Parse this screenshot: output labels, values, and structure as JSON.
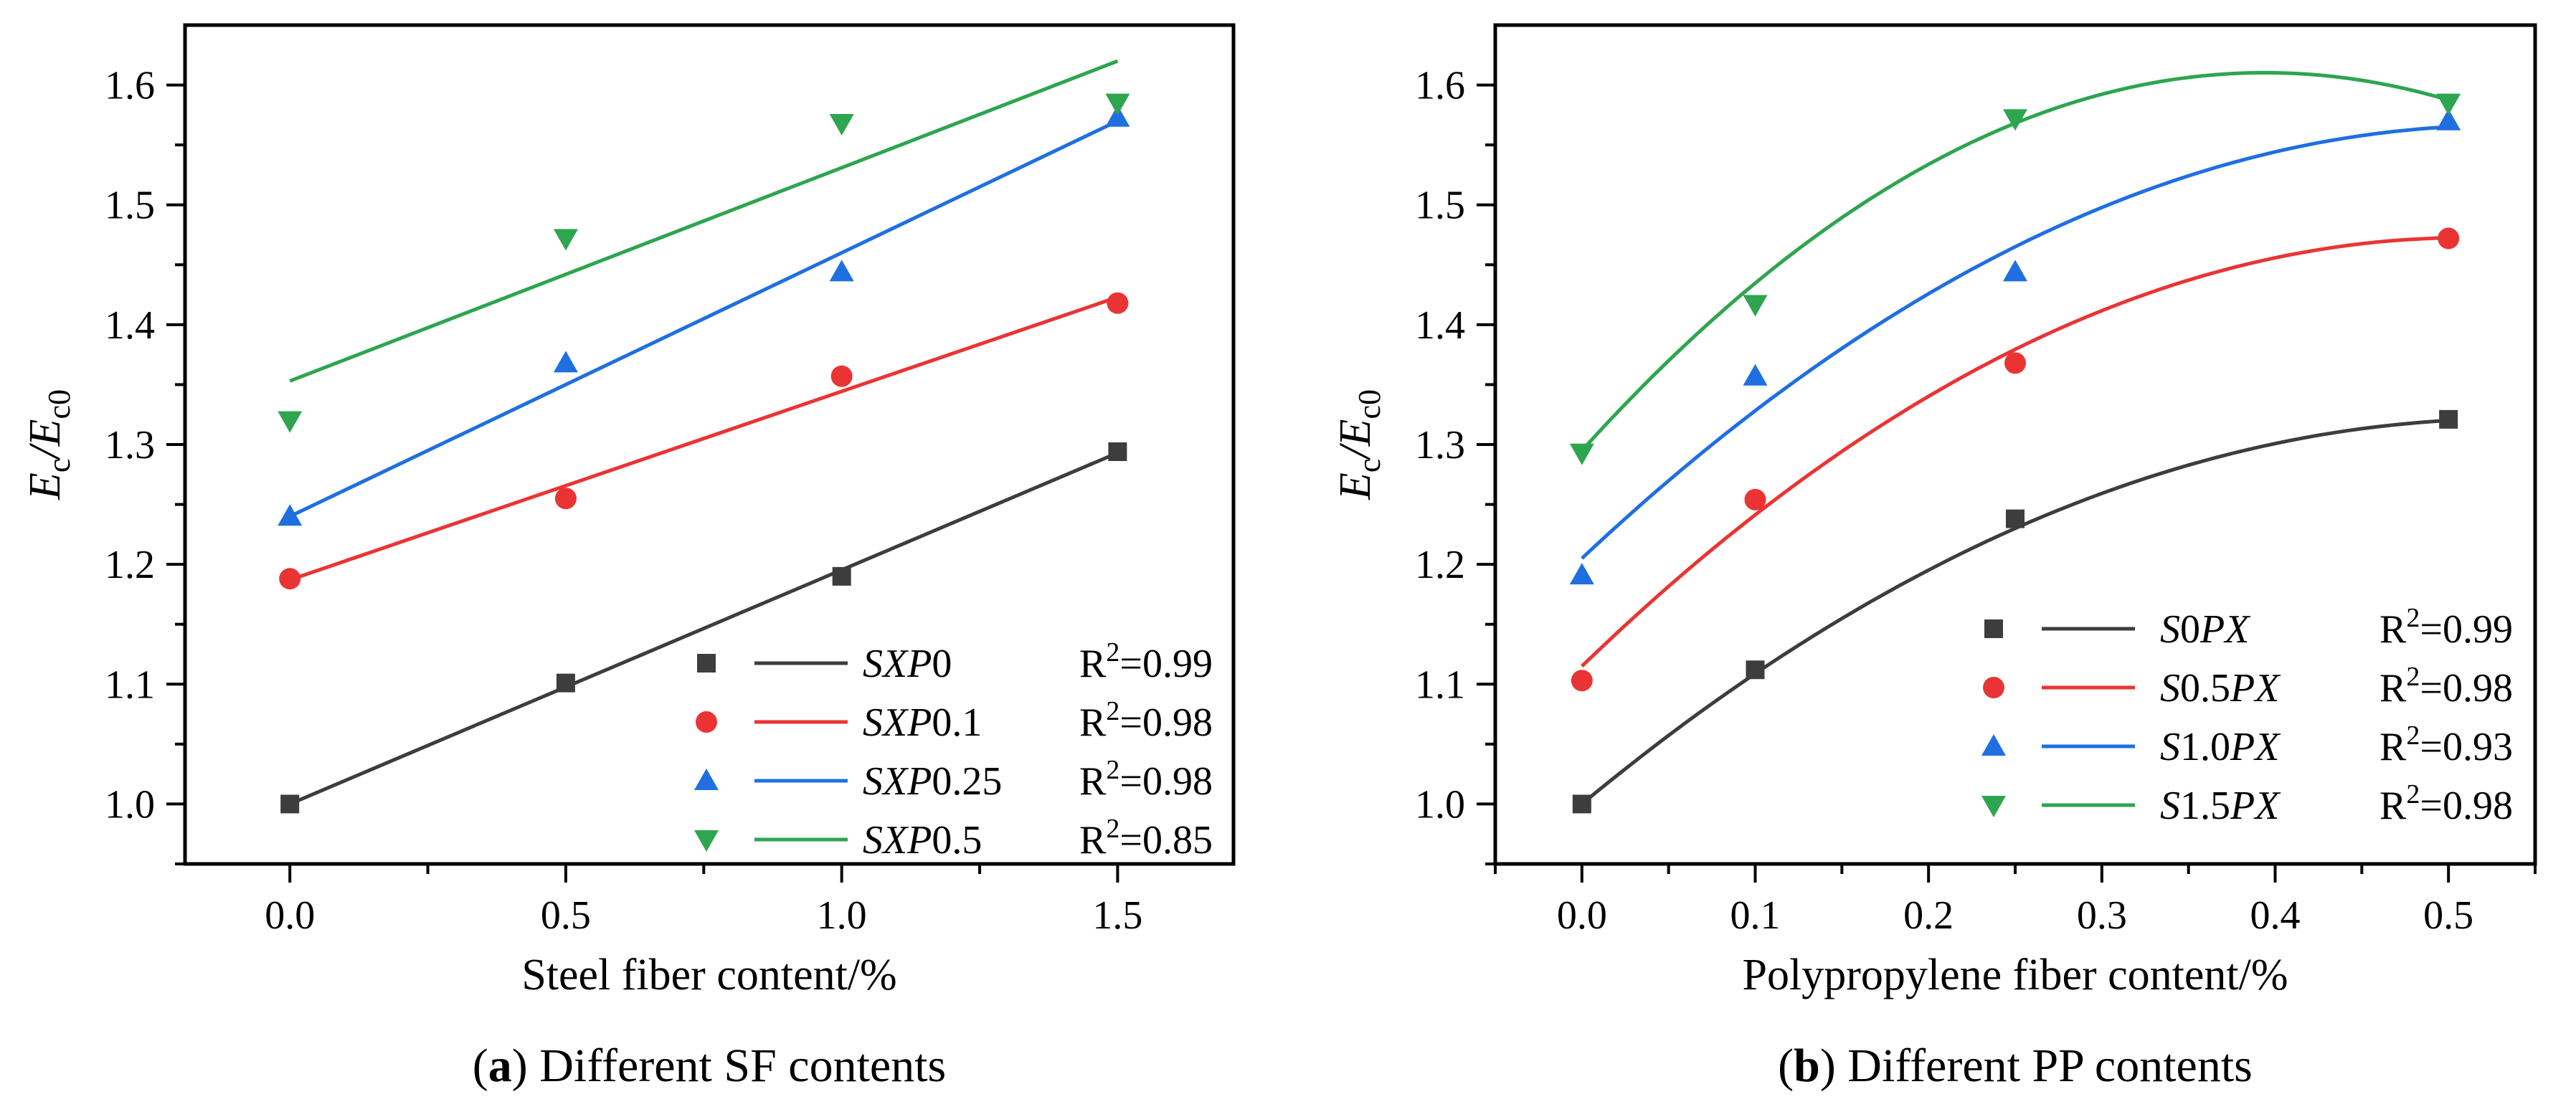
{
  "chart_data": [
    {
      "id": "a",
      "type": "scatter",
      "caption_letter": "a",
      "caption_text": "Different SF contents",
      "xlabel": "Steel fiber content/%",
      "ylabel": {
        "main": "E",
        "sub1": "c",
        "sep": "/E",
        "sub2": "c0"
      },
      "xlim": [
        -0.19,
        1.71
      ],
      "ylim": [
        0.95,
        1.65
      ],
      "xticks": [
        0.0,
        0.5,
        1.0,
        1.5
      ],
      "xtick_labels": [
        "0.0",
        "0.5",
        "1.0",
        "1.5"
      ],
      "yticks": [
        1.0,
        1.1,
        1.2,
        1.3,
        1.4,
        1.5,
        1.6
      ],
      "ytick_labels": [
        "1.0",
        "1.1",
        "1.2",
        "1.3",
        "1.4",
        "1.5",
        "1.6"
      ],
      "legend_position": "bottom-right",
      "fit": "linear",
      "series": [
        {
          "name_prefix": "SXP",
          "name_suffix": "0",
          "r2": "=0.99",
          "color": "#3d3d3d",
          "marker": "square",
          "x": [
            0,
            0.5,
            1.0,
            1.5
          ],
          "y": [
            1.0,
            1.101,
            1.19,
            1.294
          ],
          "fit_x": [
            0,
            1.5
          ],
          "fit_y": [
            1.0,
            1.293
          ]
        },
        {
          "name_prefix": "SXP",
          "name_suffix": "0.1",
          "r2": "=0.98",
          "color": "#ea3434",
          "marker": "circle",
          "x": [
            0,
            0.5,
            1.0,
            1.5
          ],
          "y": [
            1.188,
            1.255,
            1.357,
            1.418
          ],
          "fit_x": [
            0,
            1.5
          ],
          "fit_y": [
            1.187,
            1.423
          ]
        },
        {
          "name_prefix": "SXP",
          "name_suffix": "0.25",
          "r2": "=0.98",
          "color": "#1f6fe0",
          "marker": "triangle-up",
          "x": [
            0,
            0.5,
            1.0,
            1.5
          ],
          "y": [
            1.24,
            1.368,
            1.444,
            1.573
          ],
          "fit_x": [
            0,
            1.5
          ],
          "fit_y": [
            1.24,
            1.57
          ]
        },
        {
          "name_prefix": "SXP",
          "name_suffix": "0.5",
          "r2": "=0.85",
          "color": "#2ea54f",
          "marker": "triangle-down",
          "x": [
            0,
            0.5,
            1.0,
            1.5
          ],
          "y": [
            1.32,
            1.472,
            1.568,
            1.585
          ],
          "fit_x": [
            0,
            1.5
          ],
          "fit_y": [
            1.353,
            1.62
          ]
        }
      ]
    },
    {
      "id": "b",
      "type": "scatter",
      "caption_letter": "b",
      "caption_text": "Different PP contents",
      "xlabel": "Polypropylene fiber content/%",
      "ylabel": {
        "main": "E",
        "sub1": "c",
        "sep": "/E",
        "sub2": "c0"
      },
      "xlim": [
        -0.05,
        0.55
      ],
      "ylim": [
        0.95,
        1.65
      ],
      "xticks": [
        0.0,
        0.1,
        0.2,
        0.3,
        0.4,
        0.5
      ],
      "xtick_labels": [
        "0.0",
        "0.1",
        "0.2",
        "0.3",
        "0.4",
        "0.5"
      ],
      "yticks": [
        1.0,
        1.1,
        1.2,
        1.3,
        1.4,
        1.5,
        1.6
      ],
      "ytick_labels": [
        "1.0",
        "1.1",
        "1.2",
        "1.3",
        "1.4",
        "1.5",
        "1.6"
      ],
      "legend_position": "bottom-right",
      "fit": "quadratic",
      "series": [
        {
          "name_prefix": "S",
          "name_mid": "0",
          "name_suffix": "PX",
          "r2": "=0.99",
          "color": "#3d3d3d",
          "marker": "square",
          "x": [
            0,
            0.1,
            0.25,
            0.5
          ],
          "y": [
            1.0,
            1.112,
            1.238,
            1.321
          ],
          "fit_coef": [
            1.0,
            1.2,
            -1.12
          ]
        },
        {
          "name_prefix": "S",
          "name_mid": "0.5",
          "name_suffix": "PX",
          "r2": "=0.98",
          "color": "#ea3434",
          "marker": "circle",
          "x": [
            0,
            0.1,
            0.25,
            0.5
          ],
          "y": [
            1.103,
            1.254,
            1.368,
            1.472
          ],
          "fit_coef": [
            1.115,
            1.4,
            -1.37
          ]
        },
        {
          "name_prefix": "S",
          "name_mid": "1.0",
          "name_suffix": "PX",
          "r2": "=0.93",
          "color": "#1f6fe0",
          "marker": "triangle-up",
          "x": [
            0,
            0.1,
            0.25,
            0.5
          ],
          "y": [
            1.191,
            1.357,
            1.444,
            1.57
          ],
          "fit_coef": [
            1.205,
            1.36,
            -1.28
          ]
        },
        {
          "name_prefix": "S",
          "name_mid": "1.5",
          "name_suffix": "PX",
          "r2": "=0.98",
          "color": "#2ea54f",
          "marker": "triangle-down",
          "x": [
            0,
            0.1,
            0.25,
            0.5
          ],
          "y": [
            1.293,
            1.417,
            1.572,
            1.585
          ],
          "fit_coef": [
            1.295,
            1.6,
            -2.03
          ]
        }
      ]
    }
  ],
  "r2_label": "R"
}
